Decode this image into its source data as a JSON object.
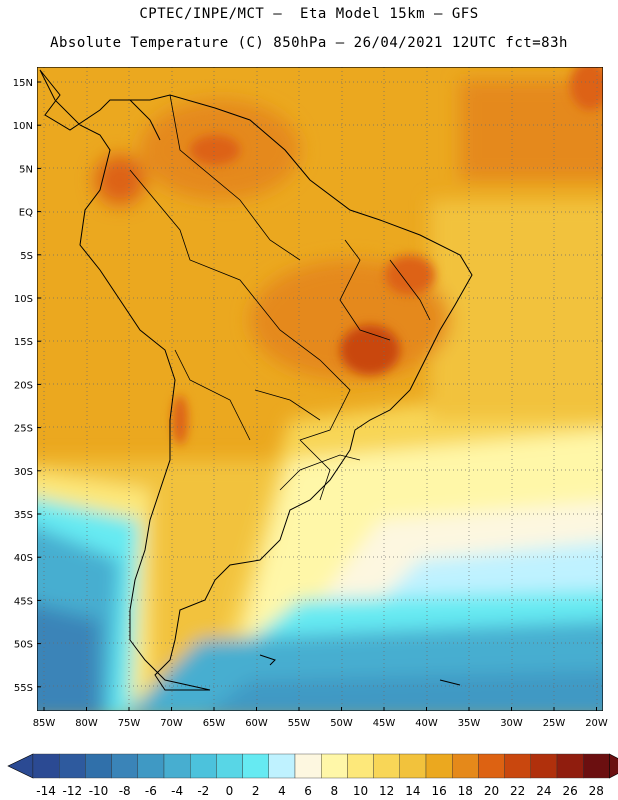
{
  "header": {
    "line1": "CPTEC/INPE/MCT –  Eta Model 15km – GFS",
    "line2": "Absolute Temperature (C) 850hPa – 26/04/2021 12UTC fct=83h"
  },
  "map": {
    "lat_labels": [
      "15N",
      "10N",
      "5N",
      "EQ",
      "5S",
      "10S",
      "15S",
      "20S",
      "25S",
      "30S",
      "35S",
      "40S",
      "45S",
      "50S",
      "55S"
    ],
    "lon_labels": [
      "85W",
      "80W",
      "75W",
      "70W",
      "65W",
      "60W",
      "55W",
      "50W",
      "45W",
      "40W",
      "35W",
      "30W",
      "25W",
      "20W"
    ]
  },
  "colorbar": {
    "labels": [
      "-14",
      "-12",
      "-10",
      "-8",
      "-6",
      "-4",
      "-2",
      "0",
      "2",
      "4",
      "6",
      "8",
      "10",
      "12",
      "14",
      "16",
      "18",
      "20",
      "22",
      "24",
      "26",
      "28"
    ],
    "colors": [
      "#2b4a93",
      "#2e5a9e",
      "#3070aa",
      "#3a84b8",
      "#3f99c4",
      "#47aed0",
      "#4cc2dc",
      "#58d6e6",
      "#66eaf2",
      "#bff2ff",
      "#fdf7e0",
      "#fff7a8",
      "#fde87a",
      "#f8d657",
      "#f2c23c",
      "#eba81f",
      "#e5891a",
      "#dd6212",
      "#c9470e",
      "#b0300c",
      "#901d0e",
      "#6b0f10"
    ]
  }
}
